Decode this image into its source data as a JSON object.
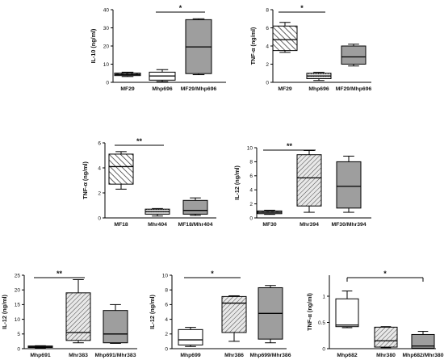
{
  "chart_data": [
    {
      "type": "box",
      "ylabel": "IL-10 (ng/ml)",
      "ylim": [
        0,
        40
      ],
      "yticks": [
        0,
        10,
        20,
        30,
        40
      ],
      "categories": [
        "MF29",
        "Mhp696",
        "MF29/Mhp696"
      ],
      "boxes": [
        {
          "min": 3.2,
          "q1": 3.7,
          "median": 4.3,
          "q3": 5.1,
          "max": 5.6,
          "pattern": "dashed",
          "fill": "#cfcfcf"
        },
        {
          "min": 0.4,
          "q1": 1.2,
          "median": 3.5,
          "q3": 5.6,
          "max": 7.0,
          "pattern": "none",
          "fill": "#ffffff"
        },
        {
          "min": 4.2,
          "q1": 4.8,
          "median": 19.5,
          "q3": 34.5,
          "max": 35.0,
          "pattern": "solid",
          "fill": "#9e9e9e"
        }
      ],
      "significance": [
        {
          "from": 1,
          "to": 2,
          "label": "*"
        }
      ]
    },
    {
      "type": "box",
      "ylabel": "TNF-α (ng/ml)",
      "ylim": [
        0,
        8
      ],
      "yticks": [
        0,
        2,
        4,
        6,
        8
      ],
      "categories": [
        "MF29",
        "Mhp696",
        "MF29/Mhp696"
      ],
      "boxes": [
        {
          "min": 3.3,
          "q1": 3.5,
          "median": 4.7,
          "q3": 6.2,
          "max": 6.6,
          "pattern": "hatch",
          "fill": "#ffffff"
        },
        {
          "min": 0.2,
          "q1": 0.4,
          "median": 0.7,
          "q3": 1.0,
          "max": 1.1,
          "pattern": "dotted",
          "fill": "#e3e3e3"
        },
        {
          "min": 1.8,
          "q1": 2.0,
          "median": 2.8,
          "q3": 4.0,
          "max": 4.2,
          "pattern": "solid",
          "fill": "#9e9e9e"
        }
      ],
      "significance": [
        {
          "from": 0,
          "to": 1,
          "label": "*"
        }
      ]
    },
    {
      "type": "box",
      "ylabel": "TNF-α (ng/ml)",
      "ylim": [
        0,
        6
      ],
      "yticks": [
        0,
        2,
        4,
        6
      ],
      "categories": [
        "MF18",
        "Mhr404",
        "MF18/Mhr404"
      ],
      "boxes": [
        {
          "min": 2.3,
          "q1": 2.7,
          "median": 4.1,
          "q3": 5.1,
          "max": 5.3,
          "pattern": "hatch",
          "fill": "#ffffff"
        },
        {
          "min": 0.15,
          "q1": 0.3,
          "median": 0.5,
          "q3": 0.7,
          "max": 0.75,
          "pattern": "dotted",
          "fill": "#d9d9d9"
        },
        {
          "min": 0.2,
          "q1": 0.3,
          "median": 0.6,
          "q3": 1.4,
          "max": 1.6,
          "pattern": "solid",
          "fill": "#9e9e9e"
        }
      ],
      "significance": [
        {
          "from": 0,
          "to": 1,
          "label": "**"
        }
      ]
    },
    {
      "type": "box",
      "ylabel": "IL-12 (ng/ml)",
      "ylim": [
        0,
        10
      ],
      "yticks": [
        0,
        2,
        4,
        6,
        8,
        10
      ],
      "categories": [
        "MF30",
        "Mhr394",
        "MF30/Mhr394"
      ],
      "boxes": [
        {
          "min": 0.5,
          "q1": 0.6,
          "median": 0.8,
          "q3": 1.0,
          "max": 1.1,
          "pattern": "dashed",
          "fill": "#cfcfcf"
        },
        {
          "min": 0.8,
          "q1": 1.7,
          "median": 5.7,
          "q3": 9.0,
          "max": 9.6,
          "pattern": "hatch2",
          "fill": "#e6e6e6"
        },
        {
          "min": 0.8,
          "q1": 1.4,
          "median": 4.5,
          "q3": 8.0,
          "max": 8.8,
          "pattern": "solid",
          "fill": "#9e9e9e"
        }
      ],
      "significance": [
        {
          "from": 0,
          "to": 1,
          "label": "**"
        }
      ]
    },
    {
      "type": "box",
      "ylabel": "IL-12 (ng/ml)",
      "ylim": [
        0,
        25
      ],
      "yticks": [
        0,
        5,
        10,
        15,
        20,
        25
      ],
      "categories": [
        "Mhp691",
        "Mhr383",
        "Mhp691/Mhr383"
      ],
      "boxes": [
        {
          "min": 0.2,
          "q1": 0.4,
          "median": 0.6,
          "q3": 0.9,
          "max": 1.0,
          "pattern": "dashed",
          "fill": "#cfcfcf"
        },
        {
          "min": 2.0,
          "q1": 2.8,
          "median": 5.5,
          "q3": 19.0,
          "max": 23.5,
          "pattern": "hatch2",
          "fill": "#e6e6e6"
        },
        {
          "min": 1.8,
          "q1": 2.0,
          "median": 5.0,
          "q3": 13.0,
          "max": 15.0,
          "pattern": "solid",
          "fill": "#9e9e9e"
        }
      ],
      "significance": [
        {
          "from": 0,
          "to": 1,
          "label": "**"
        }
      ]
    },
    {
      "type": "box",
      "ylabel": "IL-12 (ng/ml)",
      "ylim": [
        0,
        10
      ],
      "yticks": [
        0,
        2,
        4,
        6,
        8,
        10
      ],
      "categories": [
        "Mhp699",
        "Mhr386",
        "Mhp699/Mhr386"
      ],
      "boxes": [
        {
          "min": 0.3,
          "q1": 0.5,
          "median": 1.2,
          "q3": 2.6,
          "max": 2.9,
          "pattern": "none",
          "fill": "#ffffff"
        },
        {
          "min": 1.0,
          "q1": 2.2,
          "median": 6.2,
          "q3": 7.1,
          "max": 7.2,
          "pattern": "hatch2",
          "fill": "#e6e6e6"
        },
        {
          "min": 0.8,
          "q1": 1.3,
          "median": 4.8,
          "q3": 8.3,
          "max": 8.6,
          "pattern": "solid",
          "fill": "#9e9e9e"
        }
      ],
      "significance": [
        {
          "from": 0,
          "to": 1,
          "label": "*"
        }
      ]
    },
    {
      "type": "box",
      "ylabel": "TNF-α (ng/ml)",
      "ylim": [
        0,
        1.4
      ],
      "yticks": [
        0,
        0.5,
        1
      ],
      "categories": [
        "Mhp682",
        "Mhr380",
        "Mhp682/Mhr380"
      ],
      "boxes": [
        {
          "min": 0.4,
          "q1": 0.42,
          "median": 0.45,
          "q3": 0.95,
          "max": 1.1,
          "pattern": "none",
          "fill": "#ffffff"
        },
        {
          "min": 0.02,
          "q1": 0.03,
          "median": 0.15,
          "q3": 0.41,
          "max": 0.42,
          "pattern": "hatch2",
          "fill": "#e6e6e6"
        },
        {
          "min": 0.0,
          "q1": 0.01,
          "median": 0.05,
          "q3": 0.27,
          "max": 0.33,
          "pattern": "solid",
          "fill": "#9e9e9e"
        }
      ],
      "significance": [
        {
          "from": 0,
          "to": 2,
          "label": "*",
          "bracket": true
        }
      ]
    }
  ]
}
